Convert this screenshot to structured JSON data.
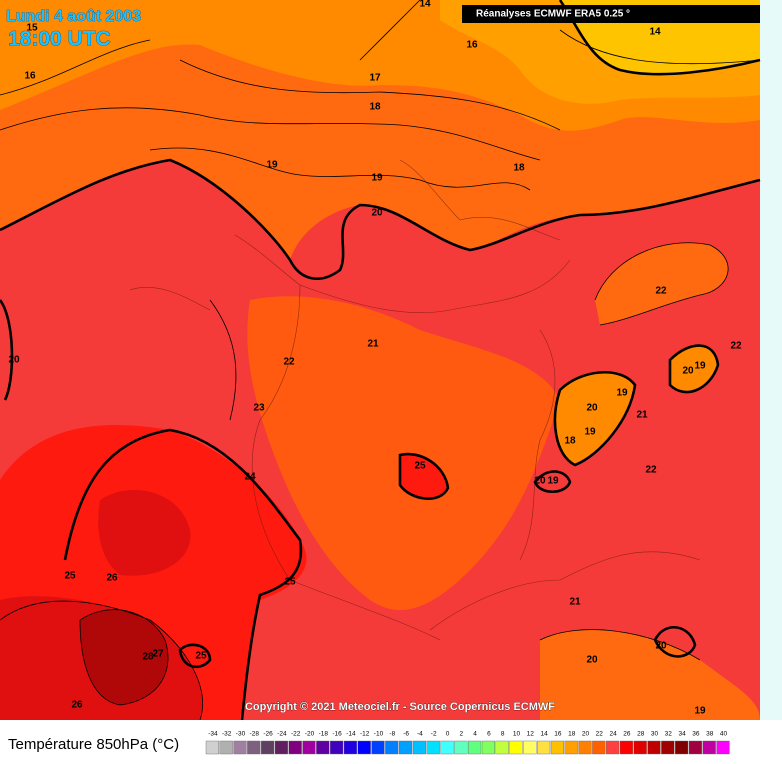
{
  "header": {
    "date": "Lundi 4 août 2003",
    "time": "18:00 UTC",
    "source": "Réanalyses ECMWF ERA5 0.25 °"
  },
  "contour_labels": [
    "14",
    "15",
    "16",
    "14",
    "16",
    "17",
    "18",
    "19",
    "19",
    "18",
    "20",
    "22",
    "21",
    "22",
    "20",
    "22",
    "20",
    "19",
    "19",
    "20",
    "21",
    "23",
    "18",
    "19",
    "25",
    "22",
    "24",
    "20",
    "19",
    "25",
    "26",
    "25",
    "21",
    "27",
    "28",
    "25",
    "20",
    "20",
    "26",
    "19"
  ],
  "copyright": "Copyright © 2021 Meteociel.fr - Source Copernicus ECMWF",
  "legend": {
    "title": "Température 850hPa (°C)",
    "ticks": [
      -34,
      -32,
      -30,
      -28,
      -26,
      -24,
      -22,
      -20,
      -18,
      -16,
      -14,
      -12,
      -10,
      -8,
      -6,
      -4,
      -2,
      0,
      2,
      4,
      6,
      8,
      10,
      12,
      14,
      16,
      18,
      20,
      22,
      24,
      26,
      28,
      30,
      32,
      34,
      36,
      38,
      40
    ],
    "colors": [
      "#d0d0d0",
      "#b0b0b0",
      "#a080a0",
      "#806080",
      "#604060",
      "#602060",
      "#800080",
      "#a000a0",
      "#6000a0",
      "#4000c0",
      "#2000e0",
      "#0000ff",
      "#0040ff",
      "#0080ff",
      "#00a0ff",
      "#00c0ff",
      "#00e0ff",
      "#40ffff",
      "#60ffc0",
      "#60ff80",
      "#80ff60",
      "#c0ff40",
      "#ffff00",
      "#ffff60",
      "#ffe040",
      "#ffc000",
      "#ffa000",
      "#ff8000",
      "#ff6000",
      "#ff4040",
      "#ff0000",
      "#e00000",
      "#c00000",
      "#a00000",
      "#800000",
      "#a00040",
      "#c000a0",
      "#ff00ff"
    ]
  }
}
